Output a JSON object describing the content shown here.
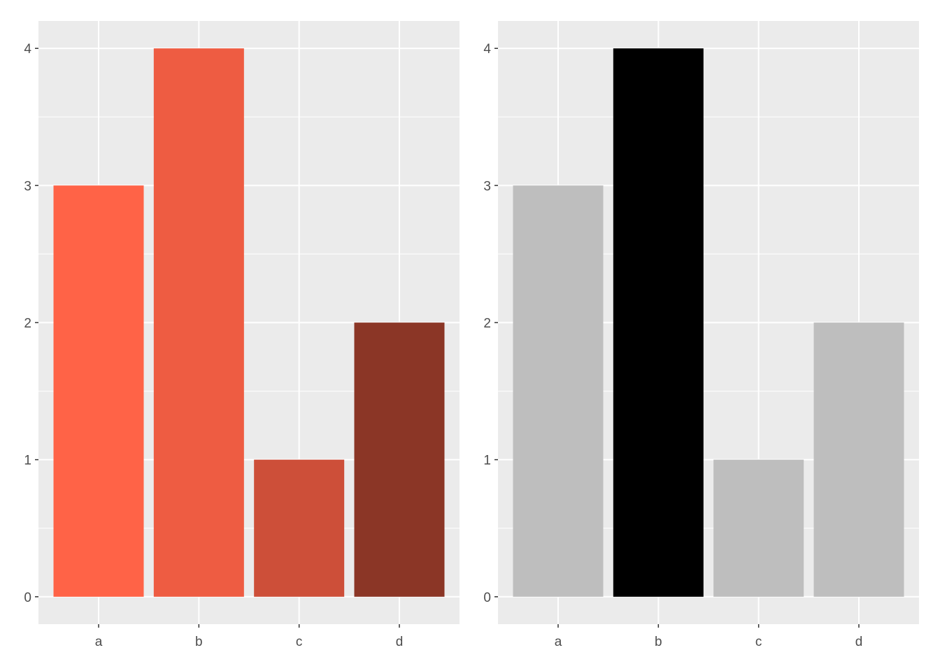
{
  "chart_data": [
    {
      "type": "bar",
      "categories": [
        "a",
        "b",
        "c",
        "d"
      ],
      "values": [
        3,
        4,
        1,
        2
      ],
      "colors": [
        "#ff6347",
        "#ee5c42",
        "#cd4f39",
        "#8b3626"
      ],
      "yticks": [
        0,
        1,
        2,
        3,
        4
      ],
      "ylim": [
        -0.2,
        4.2
      ],
      "grid": true,
      "panel_background": "#ebebeb",
      "gridline_color": "#ffffff"
    },
    {
      "type": "bar",
      "categories": [
        "a",
        "b",
        "c",
        "d"
      ],
      "values": [
        3,
        4,
        1,
        2
      ],
      "colors": [
        "#bebebe",
        "#000000",
        "#bebebe",
        "#bebebe"
      ],
      "yticks": [
        0,
        1,
        2,
        3,
        4
      ],
      "ylim": [
        -0.2,
        4.2
      ],
      "grid": true,
      "panel_background": "#ebebeb",
      "gridline_color": "#ffffff"
    }
  ]
}
